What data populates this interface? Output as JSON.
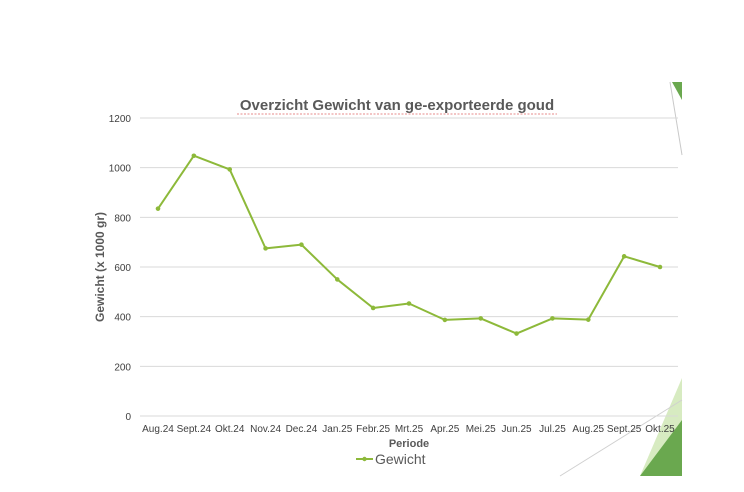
{
  "colors": {
    "series": "#8db93a",
    "grid": "#d9d9d9",
    "title": "#595959",
    "axis_text": "#404040",
    "deco_dark": "#6aa84f",
    "deco_light": "#c5e0a5"
  },
  "chart_data": {
    "type": "line",
    "title": "Overzicht Gewicht van ge-exporteerde goud",
    "xlabel": "Periode",
    "ylabel": "Gewicht (x 1000 gr)",
    "ylim": [
      0,
      1200
    ],
    "yticks": [
      0,
      200,
      400,
      600,
      800,
      1000,
      1200
    ],
    "grid": true,
    "legend_position": "bottom",
    "categories": [
      "Aug.24",
      "Sept.24",
      "Okt.24",
      "Nov.24",
      "Dec.24",
      "Jan.25",
      "Febr.25",
      "Mrt.25",
      "Apr.25",
      "Mei.25",
      "Jun.25",
      "Jul.25",
      "Aug.25",
      "Sept.25",
      "Okt.25"
    ],
    "series": [
      {
        "name": "Gewicht",
        "values": [
          835,
          1048,
          993,
          675,
          690,
          550,
          435,
          453,
          387,
          393,
          332,
          393,
          388,
          643,
          600
        ]
      }
    ]
  }
}
